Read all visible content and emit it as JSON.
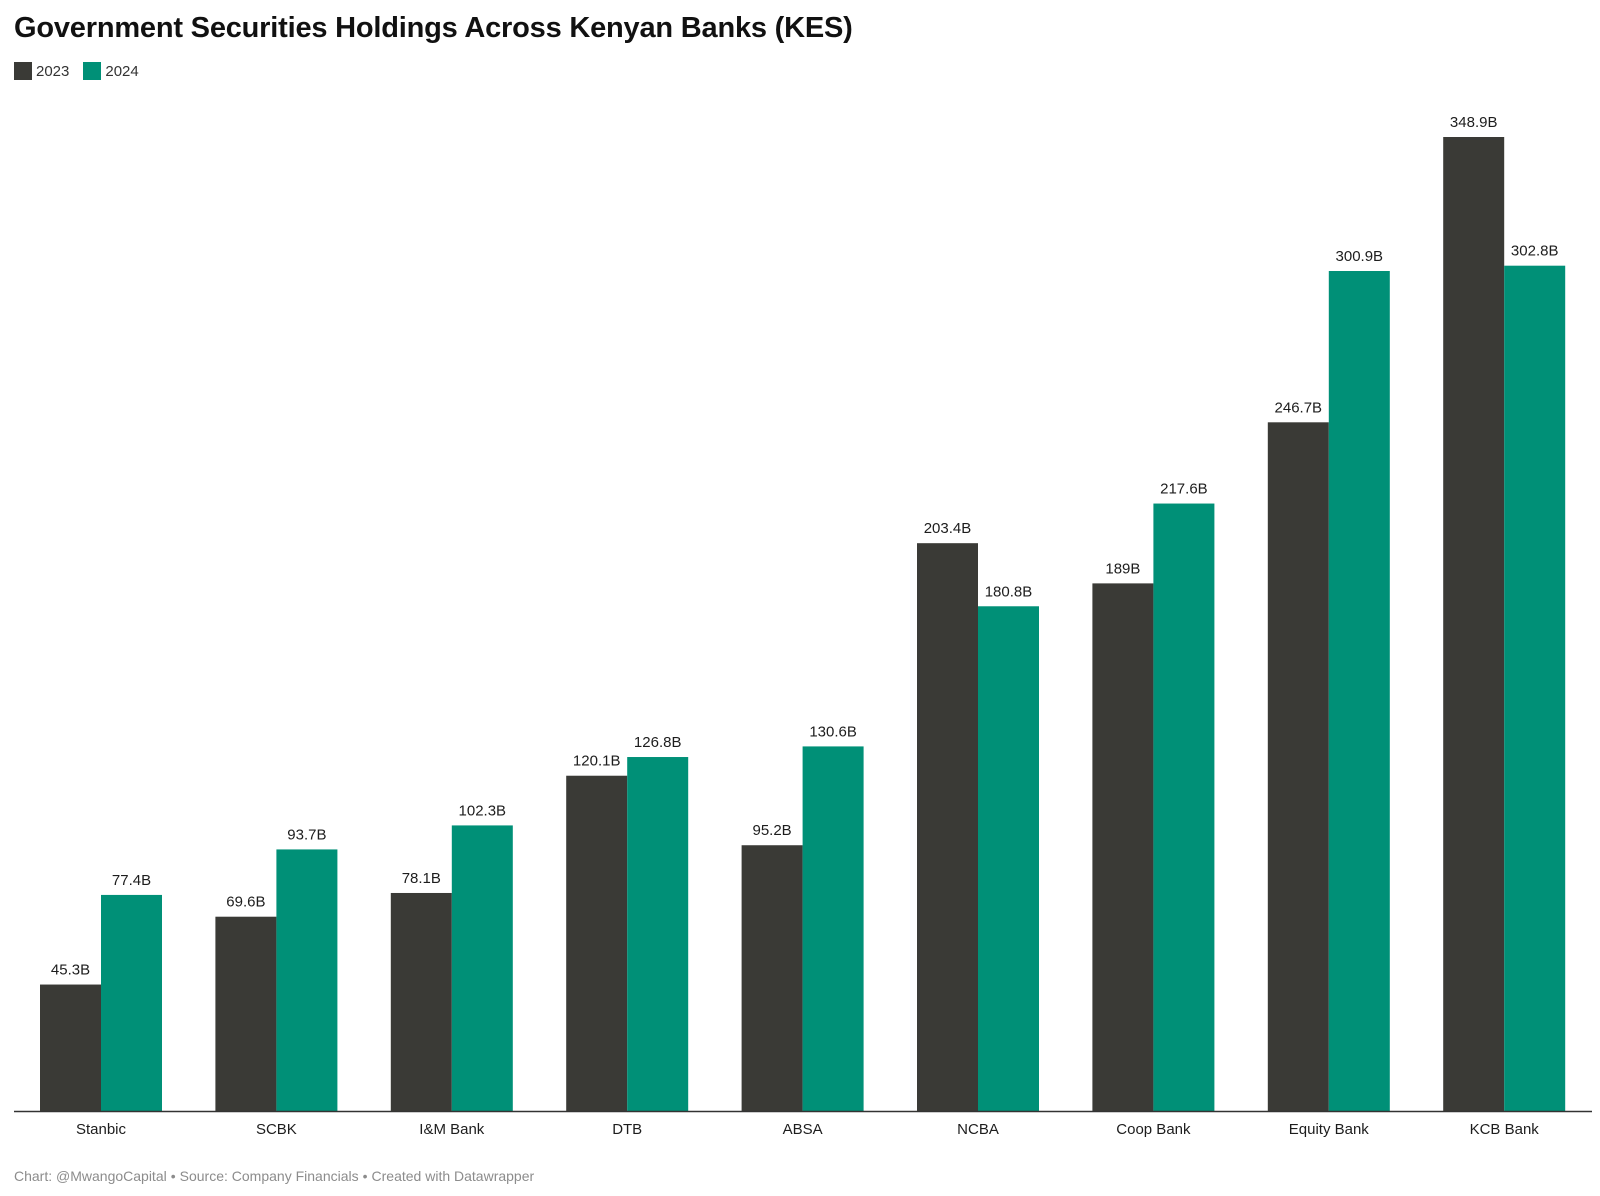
{
  "colors": {
    "s2023": "#3a3a36",
    "s2024": "#009077",
    "axis": "#333333"
  },
  "footer": {
    "chart_credit": "Chart: @MwangoCapital",
    "source": "Source: Company Financials",
    "tool": "Created with Datawrapper",
    "separator": "•"
  },
  "chart_data": {
    "type": "bar",
    "title": "Government Securities Holdings Across Kenyan Banks (KES)",
    "xlabel": "",
    "ylabel": "",
    "ylim": [
      0,
      348.9
    ],
    "grid": false,
    "legend_position": "top-left",
    "categories": [
      "Stanbic",
      "SCBK",
      "I&M Bank",
      "DTB",
      "ABSA",
      "NCBA",
      "Coop Bank",
      "Equity Bank",
      "KCB Bank"
    ],
    "series": [
      {
        "name": "2023",
        "values": [
          45.3,
          69.6,
          78.1,
          120.1,
          95.2,
          203.4,
          189,
          246.7,
          348.9
        ],
        "labels": [
          "45.3B",
          "69.6B",
          "78.1B",
          "120.1B",
          "95.2B",
          "203.4B",
          "189B",
          "246.7B",
          "348.9B"
        ]
      },
      {
        "name": "2024",
        "values": [
          77.4,
          93.7,
          102.3,
          126.8,
          130.6,
          180.8,
          217.6,
          300.9,
          302.8
        ],
        "labels": [
          "77.4B",
          "93.7B",
          "102.3B",
          "126.8B",
          "130.6B",
          "180.8B",
          "217.6B",
          "300.9B",
          "302.8B"
        ]
      }
    ]
  }
}
